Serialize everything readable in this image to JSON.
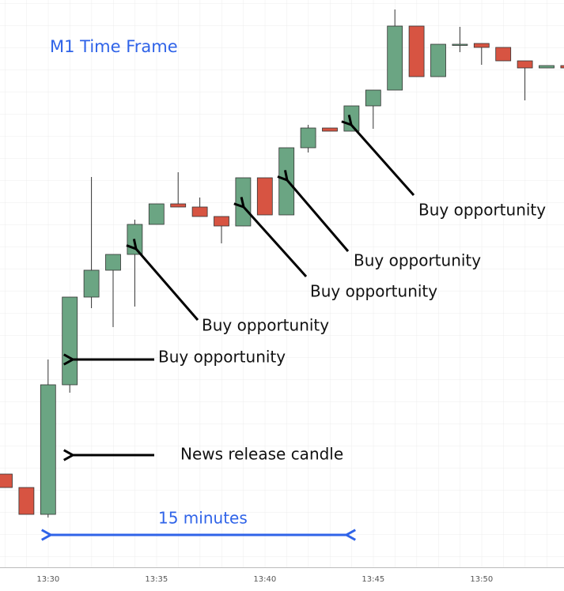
{
  "chart_data": {
    "type": "candlestick",
    "title": "M1 Time Frame",
    "categories": [
      null,
      null,
      "13:30",
      null,
      null,
      null,
      null,
      "13:35",
      null,
      null,
      null,
      null,
      "13:40",
      null,
      null,
      null,
      null,
      "13:45",
      null,
      null,
      null,
      null,
      "13:50",
      null,
      null,
      null,
      null
    ],
    "open": [
      118,
      101,
      67,
      231,
      342,
      376,
      396,
      434,
      460,
      456,
      444,
      432,
      493,
      446,
      531,
      556,
      552,
      584,
      604,
      685,
      621,
      661,
      663,
      658,
      641,
      632,
      635
    ],
    "high": [
      118,
      101,
      263,
      342,
      494,
      396,
      440,
      460,
      500,
      468,
      444,
      493,
      493,
      531,
      560,
      556,
      584,
      604,
      706,
      685,
      662,
      684,
      663,
      658,
      641,
      635,
      635
    ],
    "low": [
      101,
      67,
      63,
      221,
      328,
      304,
      330,
      434,
      456,
      444,
      410,
      432,
      446,
      446,
      525,
      552,
      552,
      555,
      604,
      621,
      621,
      652,
      636,
      641,
      591,
      632,
      632
    ],
    "close": [
      101,
      67,
      231,
      342,
      376,
      396,
      434,
      460,
      456,
      444,
      432,
      493,
      446,
      531,
      556,
      552,
      584,
      604,
      685,
      621,
      662,
      662,
      658,
      641,
      632,
      635,
      632
    ],
    "up_color": "#6ba583",
    "down_color": "#d75442",
    "ylim": [
      0,
      718
    ],
    "annotations": [
      "Buy opportunity",
      "Buy opportunity",
      "Buy opportunity",
      "Buy opportunity",
      "Buy opportunity",
      "News release candle",
      "15 minutes"
    ]
  }
}
